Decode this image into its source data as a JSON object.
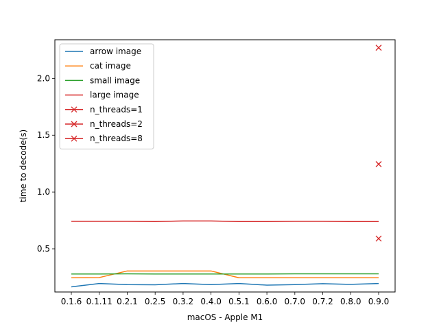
{
  "chart_data": {
    "type": "line",
    "title": "",
    "xlabel": "macOS - Apple M1",
    "ylabel": "time to decode(s)",
    "categories": [
      "0.1.6",
      "0.1.11",
      "0.2.1",
      "0.2.5",
      "0.3.2",
      "0.4.0",
      "0.5.1",
      "0.6.0",
      "0.7.0",
      "0.7.2",
      "0.8.0",
      "0.9.0"
    ],
    "ylim": [
      0.12,
      2.34
    ],
    "yticks": [
      0.5,
      1.0,
      1.5,
      2.0
    ],
    "ytick_labels": [
      "0.5",
      "1.0",
      "1.5",
      "2.0"
    ],
    "grid": false,
    "legend_position": "top-left",
    "series": [
      {
        "name": "arrow image",
        "color": "#1f77b4",
        "marker": "none",
        "values": [
          0.165,
          0.195,
          0.185,
          0.183,
          0.195,
          0.185,
          0.195,
          0.18,
          0.185,
          0.193,
          0.187,
          0.195
        ]
      },
      {
        "name": "cat image",
        "color": "#ff7f0e",
        "marker": "none",
        "values": [
          0.245,
          0.247,
          0.305,
          0.305,
          0.305,
          0.305,
          0.245,
          0.245,
          0.245,
          0.245,
          0.245,
          0.245
        ]
      },
      {
        "name": "small image",
        "color": "#2ca02c",
        "marker": "none",
        "values": [
          0.278,
          0.278,
          0.28,
          0.278,
          0.278,
          0.278,
          0.278,
          0.278,
          0.28,
          0.28,
          0.28,
          0.28
        ]
      },
      {
        "name": "large image",
        "color": "#d62728",
        "marker": "none",
        "values": [
          0.742,
          0.742,
          0.742,
          0.74,
          0.745,
          0.745,
          0.74,
          0.74,
          0.742,
          0.742,
          0.74,
          0.74
        ]
      },
      {
        "name": "n_threads=1",
        "color": "#d62728",
        "marker": "x",
        "points": [
          {
            "x": "0.9.0",
            "y": 2.27
          }
        ]
      },
      {
        "name": "n_threads=2",
        "color": "#d62728",
        "marker": "x",
        "points": [
          {
            "x": "0.9.0",
            "y": 1.245
          }
        ]
      },
      {
        "name": "n_threads=8",
        "color": "#d62728",
        "marker": "x",
        "points": [
          {
            "x": "0.9.0",
            "y": 0.59
          }
        ]
      }
    ]
  }
}
